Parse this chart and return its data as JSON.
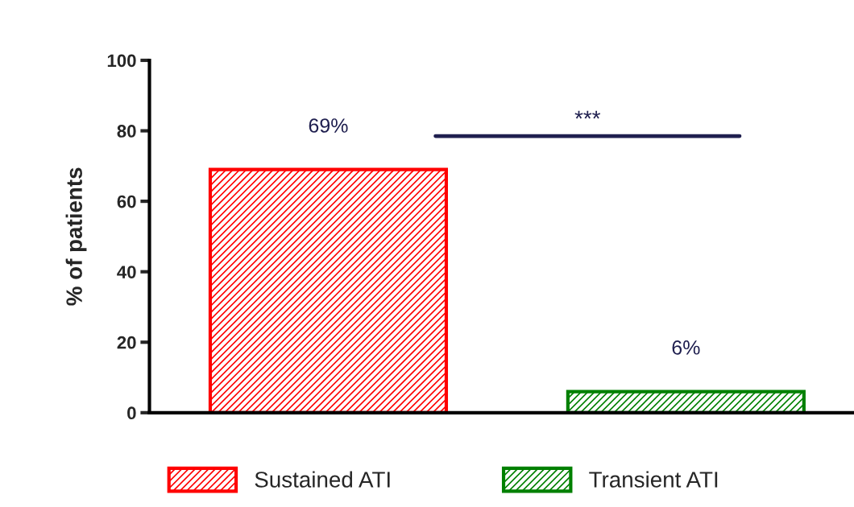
{
  "chart_data": {
    "type": "bar",
    "ylabel": "% of patients",
    "categories": [
      null,
      null
    ],
    "series": [
      {
        "name": "Sustained ATI",
        "color": "#ff0000",
        "values": [
          69,
          null
        ],
        "value_labels": [
          "69%",
          null
        ]
      },
      {
        "name": "Transient ATI",
        "color": "#008000",
        "values": [
          null,
          6
        ],
        "value_labels": [
          null,
          "6%"
        ]
      }
    ],
    "ylim": [
      0,
      100
    ],
    "yticks": [
      0,
      20,
      40,
      60,
      80,
      100
    ],
    "tick_labels": "y",
    "grid": false,
    "legend": "bottom",
    "annotations": [
      "***"
    ]
  }
}
